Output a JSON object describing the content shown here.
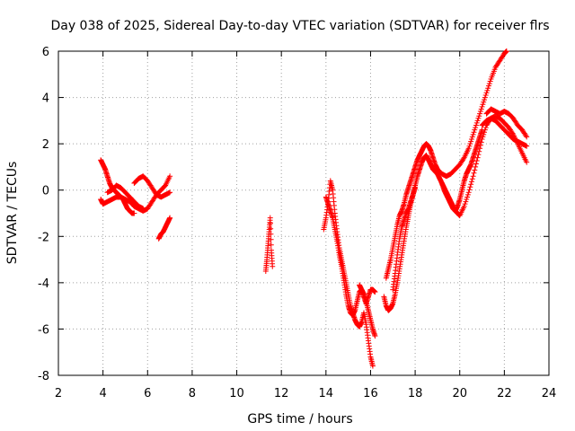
{
  "chart_data": {
    "type": "scatter",
    "title": "Day 038 of 2025, Sidereal Day-to-day VTEC variation (SDTVAR) for receiver flrs",
    "xlabel": "GPS time / hours",
    "ylabel": "SDTVAR / TECUs",
    "xlim": [
      2,
      24
    ],
    "ylim": [
      -8,
      6
    ],
    "xticks": [
      2,
      4,
      6,
      8,
      10,
      12,
      14,
      16,
      18,
      20,
      22,
      24
    ],
    "yticks": [
      -8,
      -6,
      -4,
      -2,
      0,
      2,
      4,
      6
    ],
    "xtick_labels": [
      "2",
      "4",
      "6",
      "8",
      "10",
      "12",
      "14",
      "16",
      "18",
      "20",
      "22",
      "24"
    ],
    "ytick_labels": [
      "-8",
      "-6",
      "-4",
      "-2",
      "0",
      "2",
      "4",
      "6"
    ],
    "grid": true,
    "marker": "+",
    "color": "#ff0000",
    "series": [
      {
        "x": [
          3.9,
          4.0,
          4.1,
          4.2,
          4.3,
          4.4,
          4.5,
          4.6,
          4.7,
          4.8,
          4.9,
          5.0,
          5.1,
          5.2,
          5.3,
          5.4
        ],
        "y": [
          1.3,
          1.1,
          0.9,
          0.6,
          0.3,
          0.1,
          0.0,
          -0.1,
          -0.2,
          -0.3,
          -0.4,
          -0.6,
          -0.8,
          -0.9,
          -1.0,
          -1.0
        ]
      },
      {
        "x": [
          3.9,
          4.0,
          4.2,
          4.4,
          4.6,
          4.8,
          5.0,
          5.2,
          5.4,
          5.6,
          5.8,
          6.0,
          6.2,
          6.4,
          6.6,
          6.8,
          7.0
        ],
        "y": [
          -0.4,
          -0.6,
          -0.5,
          -0.4,
          -0.3,
          -0.3,
          -0.4,
          -0.5,
          -0.7,
          -0.8,
          -0.9,
          -0.8,
          -0.5,
          -0.2,
          0.0,
          0.2,
          0.6
        ]
      },
      {
        "x": [
          5.4,
          5.6,
          5.8,
          6.0,
          6.2,
          6.4,
          6.6,
          6.8,
          7.0
        ],
        "y": [
          0.3,
          0.5,
          0.6,
          0.4,
          0.1,
          -0.2,
          -0.3,
          -0.2,
          -0.1
        ]
      },
      {
        "x": [
          4.2,
          4.4,
          4.6,
          4.8,
          5.0,
          5.2,
          5.4,
          5.6,
          5.8
        ],
        "y": [
          -0.1,
          0.0,
          0.2,
          0.1,
          -0.1,
          -0.3,
          -0.5,
          -0.7,
          -0.8
        ]
      },
      {
        "x": [
          6.5,
          6.6,
          6.7,
          6.8,
          6.9,
          7.0
        ],
        "y": [
          -2.1,
          -1.9,
          -1.8,
          -1.6,
          -1.4,
          -1.2
        ]
      },
      {
        "x": [
          11.3,
          11.35,
          11.4,
          11.45,
          11.5,
          11.55,
          11.6
        ],
        "y": [
          -3.5,
          -3.0,
          -2.4,
          -1.8,
          -1.2,
          -2.6,
          -3.3
        ]
      },
      {
        "x": [
          13.9,
          14.0,
          14.1,
          14.2,
          14.3,
          14.4,
          14.5,
          14.6,
          14.7,
          14.8,
          14.9,
          15.0,
          15.1,
          15.2,
          15.3,
          15.4,
          15.5,
          15.6,
          15.7,
          15.8,
          15.9,
          16.0,
          16.1
        ],
        "y": [
          -1.7,
          -1.2,
          -0.5,
          0.4,
          0.0,
          -1.0,
          -1.8,
          -2.5,
          -3.0,
          -3.5,
          -4.0,
          -4.5,
          -5.0,
          -5.3,
          -5.6,
          -5.8,
          -5.9,
          -5.7,
          -5.3,
          -5.8,
          -6.5,
          -7.2,
          -7.6
        ]
      },
      {
        "x": [
          14.0,
          14.1,
          14.2,
          14.3,
          14.4,
          14.5,
          14.6,
          14.7,
          14.8,
          14.9,
          15.0,
          15.1,
          15.2,
          15.3,
          15.4,
          15.5,
          15.6,
          15.7,
          15.8,
          15.9,
          16.0,
          16.1,
          16.2
        ],
        "y": [
          -0.3,
          -0.6,
          -0.9,
          -1.2,
          -1.7,
          -2.2,
          -2.8,
          -3.3,
          -3.9,
          -4.5,
          -5.0,
          -5.3,
          -5.4,
          -5.2,
          -4.8,
          -4.4,
          -4.3,
          -4.5,
          -4.8,
          -5.2,
          -5.6,
          -6.0,
          -6.3
        ]
      },
      {
        "x": [
          15.5,
          15.6,
          15.7,
          15.8,
          15.9,
          16.0,
          16.1,
          16.2
        ],
        "y": [
          -4.1,
          -4.3,
          -4.6,
          -4.9,
          -4.6,
          -4.3,
          -4.3,
          -4.4
        ]
      },
      {
        "x": [
          16.7,
          16.8,
          16.9,
          17.0,
          17.1,
          17.2,
          17.3,
          17.4,
          17.5,
          17.6,
          17.7,
          17.8,
          17.9,
          18.0,
          18.1,
          18.2,
          18.3,
          18.4,
          18.5,
          18.6,
          18.7,
          18.8,
          18.9,
          19.0,
          19.2,
          19.4,
          19.6,
          19.8,
          20.0,
          20.2,
          20.4,
          20.6,
          20.8,
          21.0,
          21.2,
          21.4,
          21.6,
          21.8,
          22.0,
          22.1
        ],
        "y": [
          -3.8,
          -3.4,
          -3.0,
          -2.5,
          -2.0,
          -1.5,
          -1.1,
          -0.9,
          -0.6,
          -0.2,
          0.1,
          0.4,
          0.7,
          1.0,
          1.3,
          1.5,
          1.7,
          1.9,
          2.0,
          1.9,
          1.7,
          1.4,
          1.1,
          0.9,
          0.7,
          0.6,
          0.7,
          0.9,
          1.1,
          1.4,
          1.8,
          2.4,
          3.0,
          3.6,
          4.2,
          4.8,
          5.3,
          5.6,
          5.9,
          6.0
        ]
      },
      {
        "x": [
          16.6,
          16.7,
          16.8,
          16.9,
          17.0,
          17.1,
          17.2,
          17.3,
          17.4,
          17.5,
          17.6,
          17.7,
          17.8,
          17.9,
          18.0,
          18.1,
          18.2,
          18.3,
          18.4,
          18.5,
          18.6,
          18.7,
          18.8,
          18.9,
          19.0,
          19.1,
          19.2,
          19.3,
          19.4,
          19.5,
          19.6,
          19.7,
          19.8,
          19.9,
          20.0,
          20.2,
          20.4,
          20.6,
          20.8,
          21.0,
          21.2,
          21.4,
          21.6,
          21.8,
          22.0,
          22.2,
          22.4,
          22.6,
          22.8,
          23.0
        ],
        "y": [
          -4.6,
          -5.0,
          -5.2,
          -5.1,
          -4.9,
          -4.5,
          -4.0,
          -3.4,
          -2.8,
          -2.2,
          -1.6,
          -1.1,
          -0.6,
          -0.2,
          0.2,
          0.6,
          0.9,
          1.2,
          1.4,
          1.5,
          1.3,
          1.1,
          0.9,
          0.8,
          0.7,
          0.5,
          0.3,
          0.1,
          -0.1,
          -0.3,
          -0.5,
          -0.7,
          -0.9,
          -1.0,
          -1.1,
          -0.7,
          -0.1,
          0.6,
          1.4,
          2.2,
          2.8,
          3.1,
          3.2,
          3.1,
          2.9,
          2.7,
          2.4,
          2.0,
          1.6,
          1.2
        ]
      },
      {
        "x": [
          17.0,
          17.1,
          17.2,
          17.3,
          17.4,
          17.5,
          17.6,
          17.7,
          17.8,
          17.9,
          18.0
        ],
        "y": [
          -4.3,
          -3.6,
          -2.8,
          -2.1,
          -1.6,
          -1.3,
          -1.0,
          -0.8,
          -0.5,
          -0.2,
          0.1
        ]
      },
      {
        "x": [
          19.2,
          19.3,
          19.4,
          19.5,
          19.6,
          19.7,
          19.8,
          19.9,
          20.0,
          20.1,
          20.2,
          20.3,
          20.4,
          20.5,
          20.6,
          20.7,
          20.8,
          20.9,
          21.0
        ],
        "y": [
          0.3,
          0.0,
          -0.2,
          -0.4,
          -0.6,
          -0.8,
          -0.9,
          -0.7,
          -0.4,
          0.0,
          0.4,
          0.7,
          0.9,
          1.1,
          1.4,
          1.7,
          2.0,
          2.3,
          2.6
        ]
      },
      {
        "x": [
          21.2,
          21.4,
          21.6,
          21.8,
          22.0,
          22.2,
          22.4,
          22.6,
          22.8,
          23.0
        ],
        "y": [
          3.3,
          3.5,
          3.4,
          3.3,
          3.4,
          3.3,
          3.1,
          2.8,
          2.6,
          2.3
        ]
      },
      {
        "x": [
          21.0,
          21.2,
          21.4,
          21.6,
          21.8,
          22.0,
          22.2,
          22.4,
          22.6,
          22.8,
          23.0
        ],
        "y": [
          2.8,
          3.0,
          3.1,
          3.0,
          2.8,
          2.6,
          2.4,
          2.2,
          2.1,
          2.0,
          1.9
        ]
      }
    ]
  }
}
